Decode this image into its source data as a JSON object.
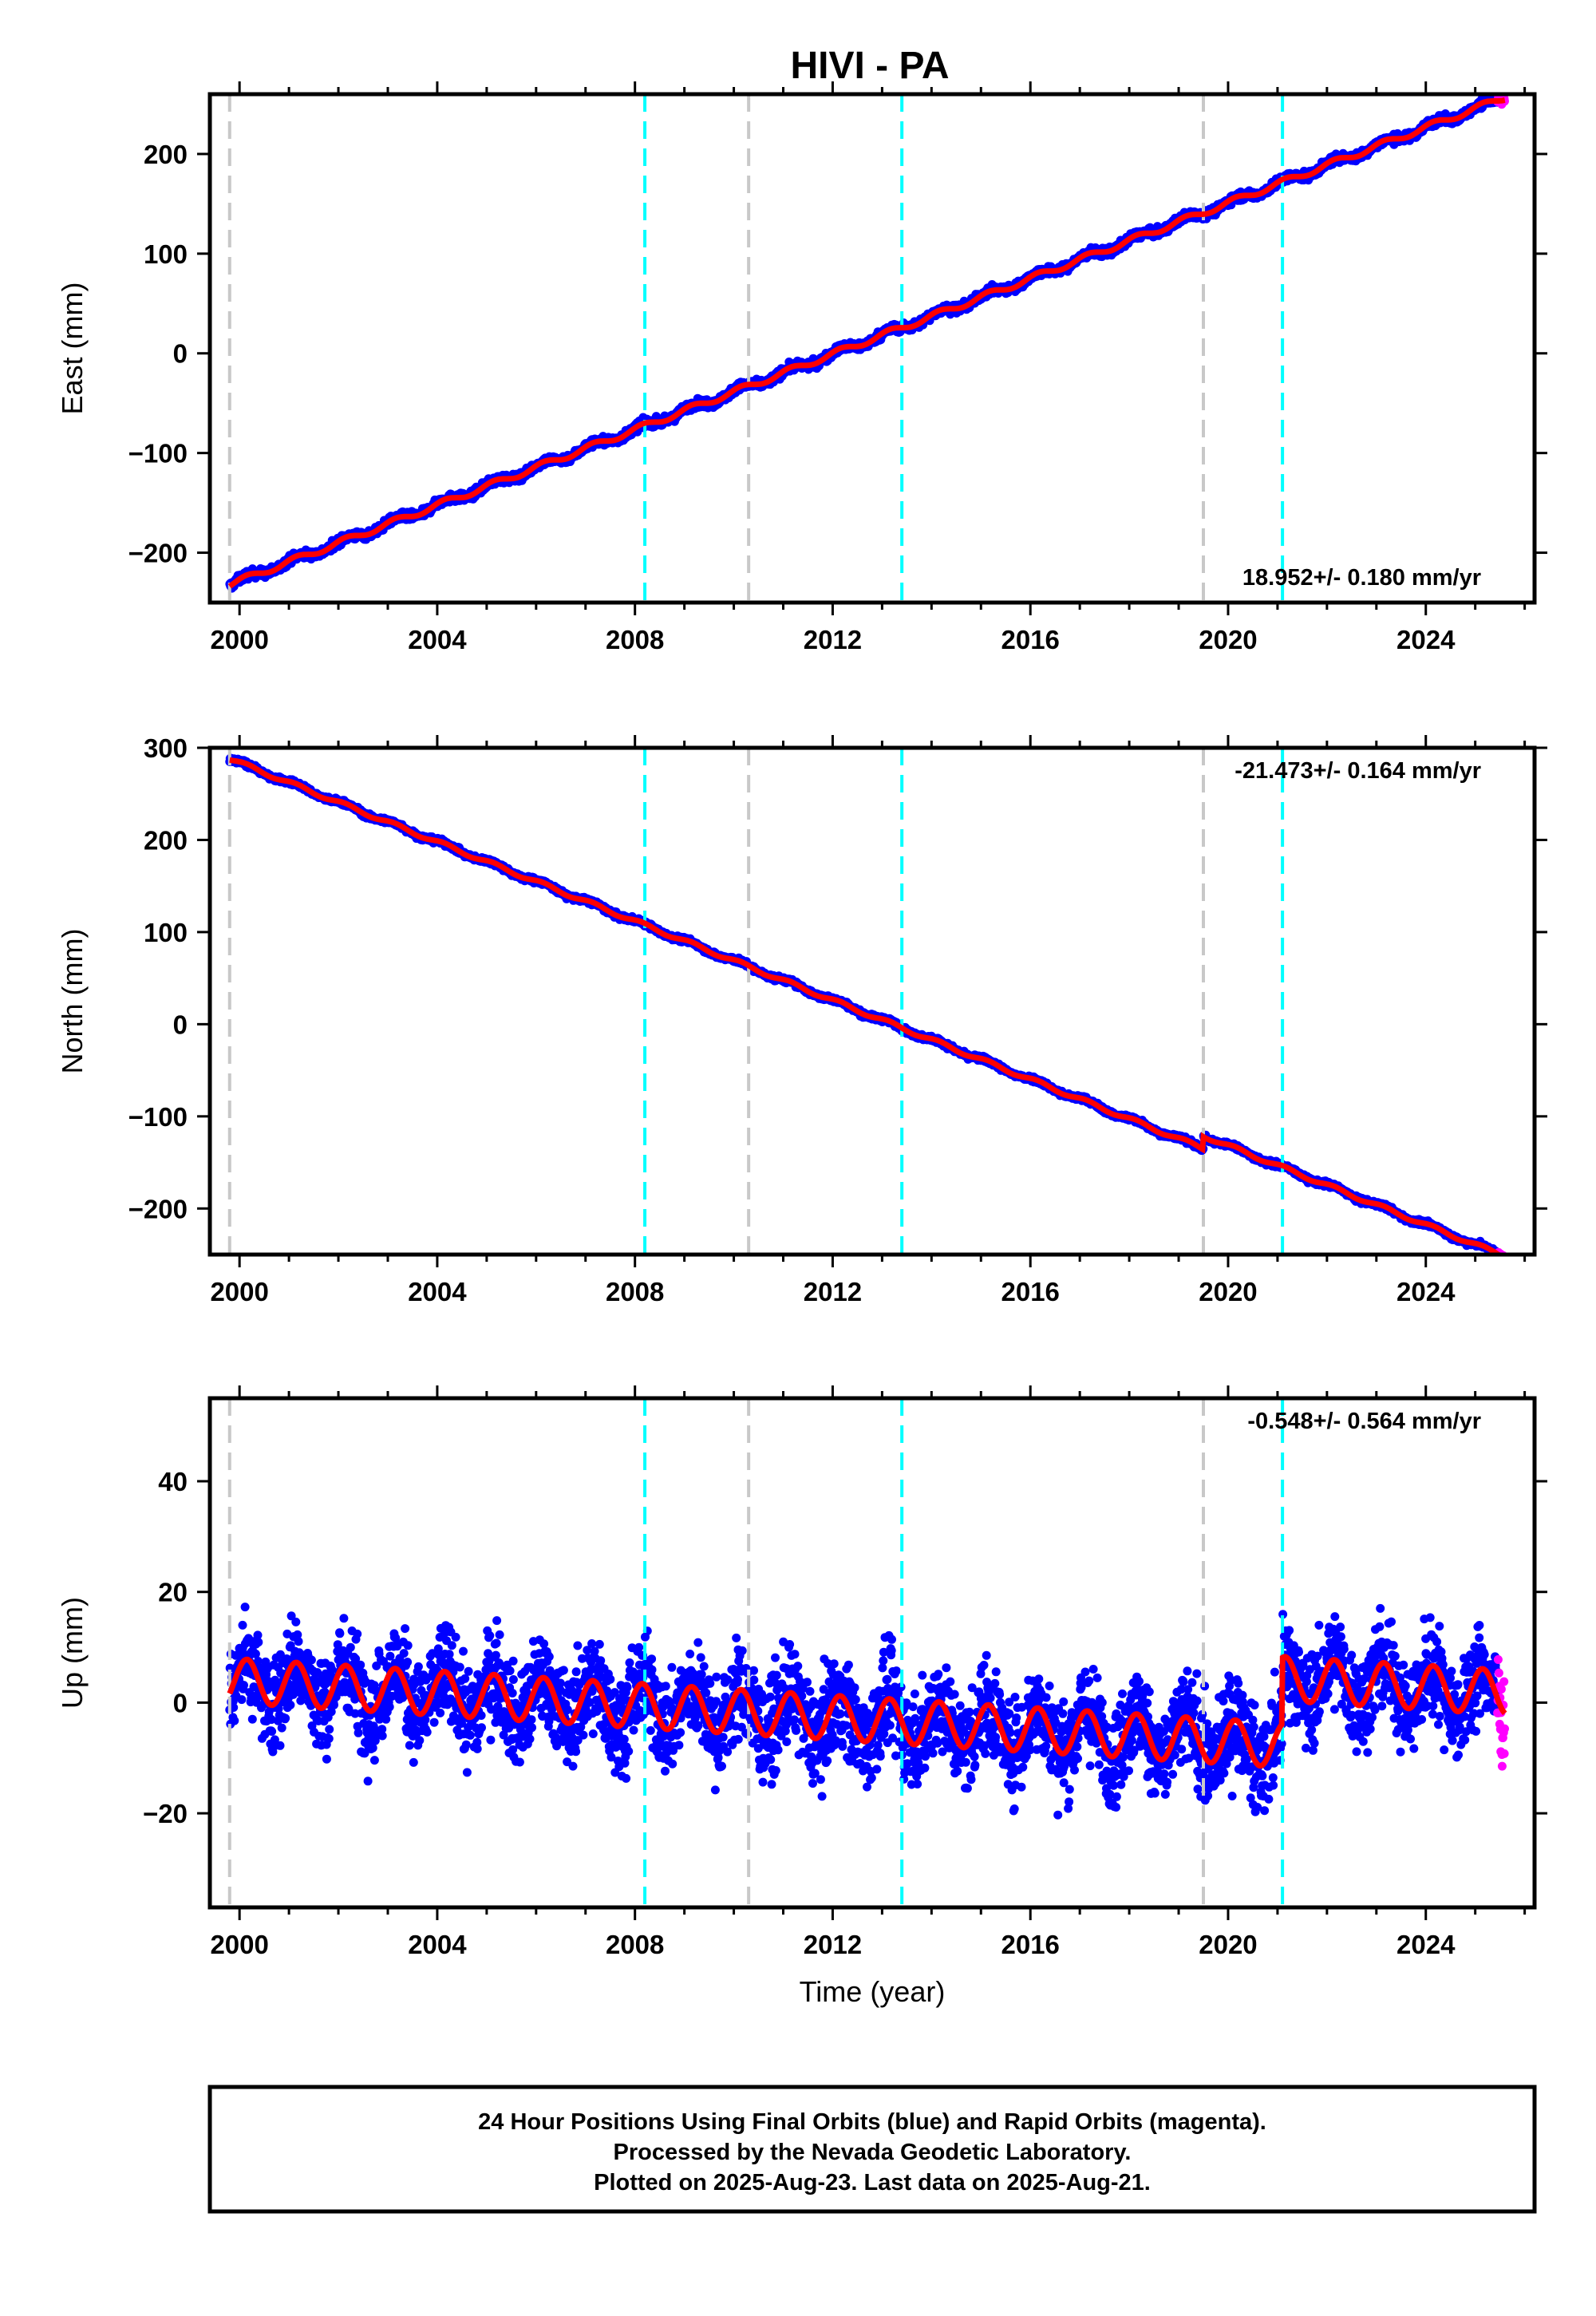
{
  "chart_data": {
    "type": "scatter",
    "title": "HIVI - PA",
    "colors": {
      "final_orbits": "#0000ff",
      "rapid_orbits": "#ff00ff",
      "model": "#ff0000",
      "equipment_change": "#c8c8c8",
      "earthquake": "#00ffff"
    },
    "xlabel": "Time (year)",
    "xlim": [
      1999.4,
      2026.2
    ],
    "xticks": [
      2000,
      2004,
      2008,
      2012,
      2016,
      2020,
      2024
    ],
    "equipment_change_epochs": [
      1999.8,
      2010.3,
      2019.5
    ],
    "earthquake_epochs": [
      2008.2,
      2013.4,
      2021.1
    ],
    "data_span": [
      1999.8,
      2025.6
    ],
    "rapid_span": [
      2025.45,
      2025.65
    ],
    "panels": [
      {
        "component": "East",
        "ylabel": "East (mm)",
        "ylim": [
          -250,
          260
        ],
        "yticks": [
          -200,
          -100,
          0,
          100,
          200
        ],
        "rate_text": "18.952+/- 0.180 mm/yr",
        "rate_position": "bottom-right",
        "velocity": 18.952,
        "start_value": -232,
        "offsets": [],
        "seasonal_amplitude": 3,
        "scatter": 3
      },
      {
        "component": "North",
        "ylabel": "North (mm)",
        "ylim": [
          -250,
          300
        ],
        "yticks": [
          -200,
          -100,
          0,
          100,
          200,
          300
        ],
        "rate_text": "-21.473+/- 0.164 mm/yr",
        "rate_position": "top-right",
        "velocity": -21.473,
        "start_value": 288,
        "offsets": [
          {
            "epoch": 2019.5,
            "value": 14
          }
        ],
        "seasonal_amplitude": 2,
        "scatter": 2
      },
      {
        "component": "Up",
        "ylabel": "Up (mm)",
        "ylim": [
          -37,
          55
        ],
        "yticks": [
          -20,
          0,
          20,
          40
        ],
        "rate_text": "-0.548+/- 0.564 mm/yr",
        "rate_position": "top-right",
        "velocity": -0.548,
        "start_value": 4,
        "offsets": [
          {
            "epoch": 2021.1,
            "value": 12
          }
        ],
        "seasonal_amplitude": 4,
        "scatter": 6
      }
    ]
  },
  "footer": {
    "line1": "24 Hour Positions Using Final Orbits (blue) and Rapid Orbits (magenta).",
    "line2": "Processed by the Nevada Geodetic Laboratory.",
    "line3": "Plotted on 2025-Aug-23. Last data on 2025-Aug-21."
  }
}
